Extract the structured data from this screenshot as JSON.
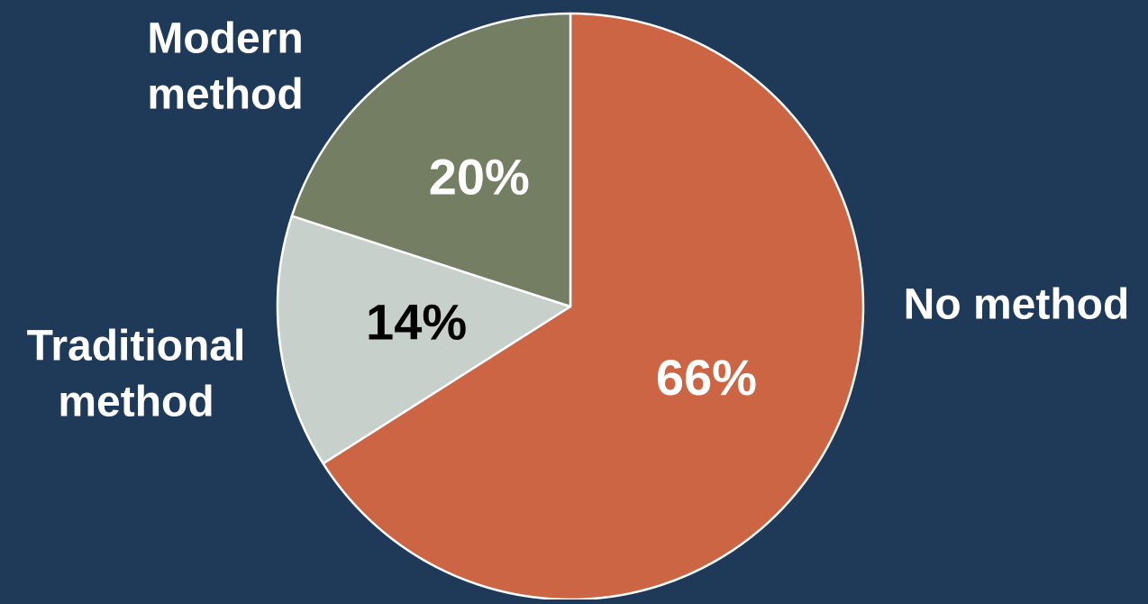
{
  "chart_data": {
    "type": "pie",
    "title": "",
    "start_angle_deg": 0,
    "direction": "clockwise",
    "slices": [
      {
        "label_lines": [
          "No method"
        ],
        "value": 66,
        "value_label": "66%",
        "color": "#cc6544",
        "value_label_color": "#ffffff"
      },
      {
        "label_lines": [
          "Traditional",
          "method"
        ],
        "value": 14,
        "value_label": "14%",
        "color": "#c8d0cb",
        "value_label_color": "#000000"
      },
      {
        "label_lines": [
          "Modern",
          "method"
        ],
        "value": 20,
        "value_label": "20%",
        "color": "#737e62",
        "value_label_color": "#ffffff"
      }
    ]
  },
  "colors": {
    "background": "#1f3a58",
    "slice_border": "#ffffff",
    "category_label": "#ffffff"
  }
}
